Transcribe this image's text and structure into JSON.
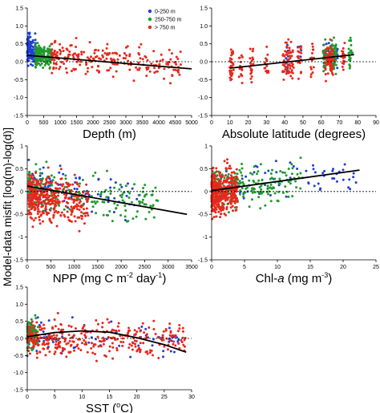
{
  "figure": {
    "ylabel": "Model-data misfit [log(m)-log(d)]",
    "legend": [
      {
        "label": "0-250 m",
        "color": "#1f3fd6"
      },
      {
        "label": "250-750 m",
        "color": "#1f9a2e"
      },
      {
        "label": "> 750 m",
        "color": "#e8281c"
      }
    ]
  },
  "chart_data": [
    {
      "type": "scatter",
      "panel": "depth",
      "xlabel": "Depth (m)",
      "xlim": [
        0,
        5000
      ],
      "ylim": [
        -1.5,
        1.5
      ],
      "xticks": [
        0,
        500,
        1000,
        1500,
        2000,
        2500,
        3000,
        3500,
        4000,
        4500,
        5000
      ],
      "yticks": [
        -1.5,
        -1.0,
        -0.5,
        0.0,
        0.5,
        1.0,
        1.5
      ],
      "ytick_labels": [
        "-1.5",
        "-1.0",
        "-0.5",
        "0.0",
        "0.5",
        "1.0",
        "1.5"
      ],
      "has_legend": true,
      "zero_line": true,
      "trend": {
        "x": [
          0,
          5000
        ],
        "y": [
          0.18,
          -0.2
        ]
      },
      "series": [
        {
          "name": "0-250 m",
          "color": "#1f3fd6",
          "x_range": [
            0,
            250
          ],
          "y_center": 0.22,
          "y_spread": 0.28,
          "n": 120
        },
        {
          "name": "250-750 m",
          "color": "#1f9a2e",
          "x_range": [
            250,
            750
          ],
          "y_center": 0.08,
          "y_spread": 0.22,
          "n": 160
        },
        {
          "name": "> 750 m",
          "color": "#e8281c",
          "x_range": [
            750,
            4700
          ],
          "y_center": 0.05,
          "y_spread": 0.3,
          "n": 230
        }
      ]
    },
    {
      "type": "scatter",
      "panel": "latitude",
      "xlabel": "Absolute latitude (degrees)",
      "xlim": [
        0,
        90
      ],
      "ylim": [
        -1.5,
        1.5
      ],
      "xticks": [
        0,
        10,
        20,
        30,
        40,
        50,
        60,
        70,
        80,
        90
      ],
      "yticks": [
        -1.5,
        -1.0,
        -0.5,
        0.0,
        0.5,
        1.0,
        1.5
      ],
      "ytick_labels": [
        "-1.5",
        "-1.0",
        "-0.5",
        "0.0",
        "0.5",
        "1.0",
        "1.5"
      ],
      "zero_line": true,
      "trend": {
        "x": [
          10,
          78
        ],
        "y": [
          -0.18,
          0.2
        ]
      },
      "series": [
        {
          "name": "0-250 m",
          "color": "#1f3fd6",
          "x_clusters": [
            41,
            48,
            62,
            65,
            68
          ],
          "y_center": 0.1,
          "y_spread": 0.3,
          "n": 60
        },
        {
          "name": "250-750 m",
          "color": "#1f9a2e",
          "x_clusters": [
            62,
            65,
            66,
            68,
            76
          ],
          "y_center": 0.05,
          "y_spread": 0.3,
          "n": 120
        },
        {
          "name": "> 750 m",
          "color": "#e8281c",
          "x_clusters": [
            11,
            16,
            22,
            30,
            40,
            42,
            44,
            48,
            55,
            63,
            65,
            66,
            72
          ],
          "y_center": 0.0,
          "y_spread": 0.35,
          "n": 260
        }
      ]
    },
    {
      "type": "scatter",
      "panel": "npp",
      "xlabel_parts": [
        "NPP (mg C m",
        "-2",
        " day",
        "-1",
        ")"
      ],
      "xlim": [
        0,
        3500
      ],
      "ylim": [
        -1.5,
        1.0
      ],
      "xticks": [
        0,
        500,
        1000,
        1500,
        2000,
        2500,
        3000,
        3500
      ],
      "yticks": [
        -1.5,
        -1.0,
        -0.5,
        0.0,
        0.5,
        1.0
      ],
      "ytick_labels": [
        "-1.5",
        "-1",
        "-0.5",
        "0",
        "0.5",
        "1"
      ],
      "zero_line": true,
      "trend": {
        "x": [
          0,
          3400
        ],
        "y": [
          0.12,
          -0.5
        ]
      },
      "series": [
        {
          "name": "0-250 m",
          "color": "#1f3fd6",
          "x_range": [
            30,
            2400
          ],
          "y_center": 0.05,
          "y_spread": 0.35,
          "n": 110
        },
        {
          "name": "250-750 m",
          "color": "#1f9a2e",
          "x_range": [
            30,
            2800
          ],
          "y_center": 0.0,
          "y_spread": 0.3,
          "n": 220
        },
        {
          "name": "> 750 m",
          "color": "#e8281c",
          "x_range": [
            30,
            1300
          ],
          "y_center": -0.2,
          "y_spread": 0.35,
          "n": 380
        }
      ]
    },
    {
      "type": "scatter",
      "panel": "chl",
      "xlabel_parts": [
        "Chl-",
        "a",
        " (mg m",
        "-3",
        ")"
      ],
      "xlim": [
        0,
        25
      ],
      "ylim": [
        -1.5,
        1.0
      ],
      "xticks": [
        0,
        5,
        10,
        15,
        20,
        25
      ],
      "yticks": [
        -1.5,
        -1.0,
        -0.5,
        0.0,
        0.5,
        1.0
      ],
      "ytick_labels": [
        "-1.5",
        "-1",
        "-0.5",
        "0",
        "0.5",
        "1"
      ],
      "zero_line": true,
      "trend": {
        "x": [
          0,
          22.5
        ],
        "y": [
          0.02,
          0.47
        ]
      },
      "series": [
        {
          "name": "0-250 m",
          "color": "#1f3fd6",
          "x_range": [
            0,
            22
          ],
          "y_center": 0.1,
          "y_spread": 0.3,
          "n": 80
        },
        {
          "name": "250-750 m",
          "color": "#1f9a2e",
          "x_range": [
            0,
            14
          ],
          "y_center": 0.05,
          "y_spread": 0.3,
          "n": 220
        },
        {
          "name": "> 750 m",
          "color": "#e8281c",
          "x_range": [
            0,
            4
          ],
          "y_center": -0.05,
          "y_spread": 0.35,
          "n": 380
        }
      ]
    },
    {
      "type": "scatter",
      "panel": "sst",
      "xlabel_parts": [
        "SST (",
        "o",
        "C)"
      ],
      "xlim": [
        0,
        30
      ],
      "ylim": [
        -1.5,
        1.5
      ],
      "xticks": [
        0,
        5,
        10,
        15,
        20,
        25,
        30
      ],
      "yticks": [
        -1.5,
        -1.0,
        -0.5,
        0.0,
        0.5,
        1.0,
        1.5
      ],
      "ytick_labels": [
        "-1.5",
        "-1.0",
        "-0.5",
        "0.0",
        "0.5",
        "1.0",
        "1.5"
      ],
      "zero_line": true,
      "trend": {
        "x": [
          0,
          5,
          10,
          15,
          20,
          25,
          29
        ],
        "y": [
          0.05,
          0.17,
          0.22,
          0.18,
          0.02,
          -0.18,
          -0.4
        ]
      },
      "series": [
        {
          "name": "0-250 m",
          "color": "#1f3fd6",
          "x_range": [
            0,
            28
          ],
          "y_center": 0.0,
          "y_spread": 0.35,
          "n": 90
        },
        {
          "name": "250-750 m",
          "color": "#1f9a2e",
          "x_range": [
            0,
            2
          ],
          "y_center": 0.1,
          "y_spread": 0.3,
          "n": 90
        },
        {
          "name": "> 750 m",
          "color": "#e8281c",
          "x_range": [
            0,
            29
          ],
          "y_center": 0.0,
          "y_spread": 0.35,
          "n": 330
        }
      ]
    }
  ]
}
